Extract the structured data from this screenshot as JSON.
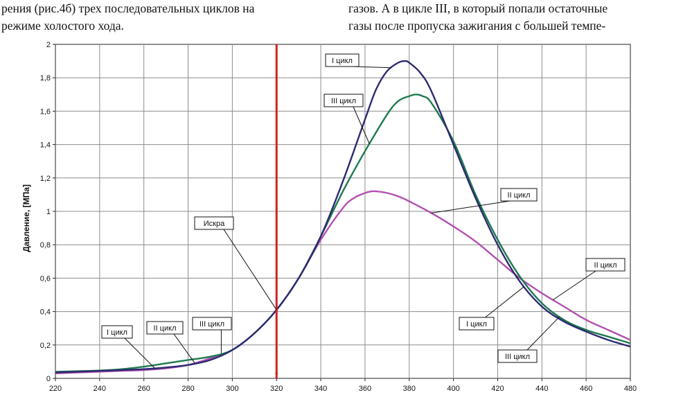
{
  "text_top": {
    "left_lines": [
      "рения (рис.4б) трех последовательных циклов на",
      "режиме холостого хода."
    ],
    "right_lines": [
      "газов. А в цикле III, в который попали остаточные",
      "газы после пропуска зажигания с большей темпе-"
    ]
  },
  "chart_data": {
    "type": "line",
    "xlabel": "",
    "ylabel": "Давление, [МПа]",
    "xlim": [
      220,
      480
    ],
    "ylim": [
      0,
      2
    ],
    "x_ticks": [
      "220",
      "240",
      "260",
      "280",
      "300",
      "320",
      "340",
      "360",
      "380",
      "400",
      "420",
      "440",
      "460",
      "480"
    ],
    "y_ticks": [
      "0",
      "0,2",
      "0,4",
      "0,6",
      "0,8",
      "1",
      "1,2",
      "1,4",
      "1,6",
      "1,8",
      "2"
    ],
    "grid": true,
    "colors": {
      "cycle1": "#2b2a72",
      "cycle2": "#b24fb0",
      "cycle3": "#1e7a4e",
      "spark": "#d21f1f",
      "grid": "#8c8c8c"
    },
    "spark": {
      "x": 320,
      "label": "Искра"
    },
    "series": [
      {
        "name": "I цикл",
        "color": "#2b2a72",
        "x": [
          220,
          230,
          240,
          250,
          260,
          270,
          280,
          290,
          300,
          310,
          320,
          330,
          340,
          350,
          360,
          365,
          370,
          375,
          378,
          380,
          385,
          390,
          400,
          410,
          420,
          430,
          440,
          450,
          460,
          470,
          480
        ],
        "y": [
          0.035,
          0.04,
          0.045,
          0.05,
          0.055,
          0.065,
          0.08,
          0.11,
          0.17,
          0.27,
          0.41,
          0.6,
          0.85,
          1.18,
          1.55,
          1.73,
          1.84,
          1.89,
          1.9,
          1.89,
          1.83,
          1.72,
          1.4,
          1.08,
          0.8,
          0.58,
          0.43,
          0.34,
          0.28,
          0.23,
          0.19
        ]
      },
      {
        "name": "II цикл",
        "color": "#b24fb0",
        "x": [
          220,
          230,
          240,
          250,
          260,
          270,
          280,
          290,
          300,
          310,
          320,
          330,
          340,
          350,
          355,
          360,
          363,
          365,
          370,
          375,
          380,
          390,
          400,
          410,
          420,
          430,
          440,
          450,
          460,
          470,
          480
        ],
        "y": [
          0.03,
          0.035,
          0.04,
          0.045,
          0.05,
          0.06,
          0.08,
          0.12,
          0.17,
          0.27,
          0.41,
          0.6,
          0.83,
          1.02,
          1.08,
          1.11,
          1.12,
          1.12,
          1.11,
          1.09,
          1.06,
          0.99,
          0.91,
          0.82,
          0.71,
          0.6,
          0.51,
          0.43,
          0.35,
          0.29,
          0.23
        ]
      },
      {
        "name": "III цикл",
        "color": "#1e7a4e",
        "x": [
          220,
          230,
          240,
          250,
          260,
          270,
          280,
          290,
          300,
          310,
          320,
          330,
          340,
          350,
          360,
          370,
          375,
          380,
          383,
          386,
          390,
          400,
          410,
          420,
          430,
          440,
          450,
          460,
          470,
          480
        ],
        "y": [
          0.04,
          0.043,
          0.047,
          0.055,
          0.07,
          0.09,
          0.11,
          0.13,
          0.17,
          0.27,
          0.41,
          0.6,
          0.85,
          1.12,
          1.36,
          1.58,
          1.66,
          1.69,
          1.7,
          1.69,
          1.65,
          1.42,
          1.1,
          0.83,
          0.61,
          0.45,
          0.35,
          0.29,
          0.25,
          0.21
        ]
      }
    ],
    "annotations": [
      {
        "text": "I цикл",
        "series": "I цикл",
        "target_x": 372
      },
      {
        "text": "III цикл",
        "series": "III цикл",
        "target_x": 362
      },
      {
        "text": "II цикл",
        "series": "II цикл",
        "target_x": 390
      },
      {
        "text": "II цикл",
        "series": "II цикл",
        "target_x": 445
      },
      {
        "text": "I цикл",
        "series": "I цикл",
        "target_x": 432
      },
      {
        "text": "III цикл",
        "series": "III цикл",
        "target_x": 448
      },
      {
        "text": "Искра",
        "series": "spark",
        "target_x": 320
      },
      {
        "text": "I цикл",
        "series": "I цикл",
        "target_x": 265
      },
      {
        "text": "II цикл",
        "series": "II цикл",
        "target_x": 283
      },
      {
        "text": "III цикл",
        "series": "III цикл",
        "target_x": 295
      }
    ]
  }
}
